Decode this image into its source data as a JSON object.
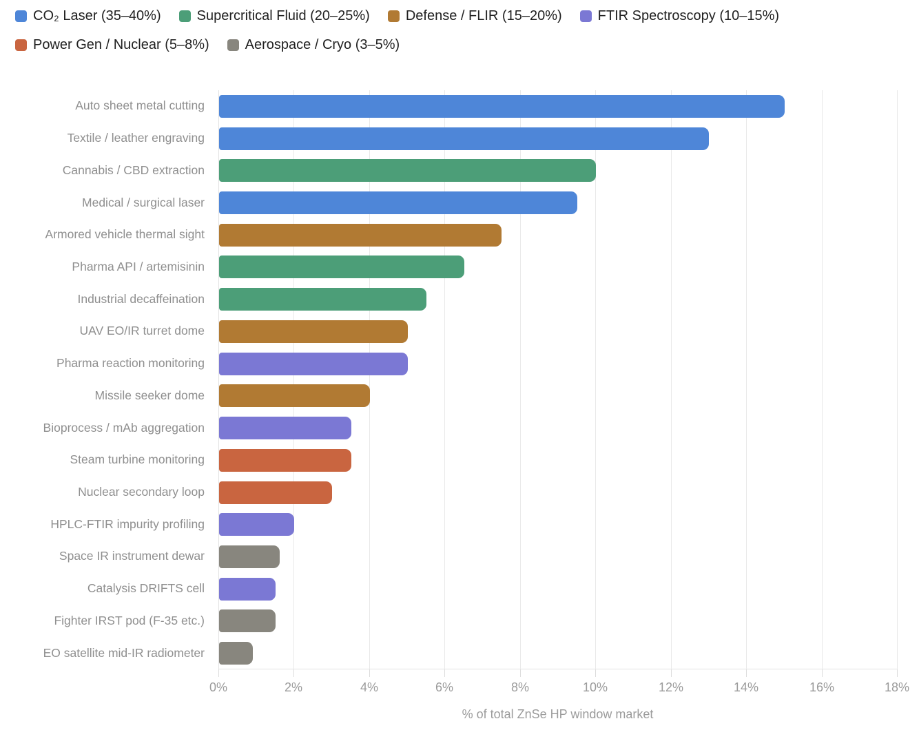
{
  "legend": {
    "items": [
      {
        "key": "co2_laser",
        "label": "CO₂ Laser (35–40%)",
        "color": "#4e86d8"
      },
      {
        "key": "supercritical_fluid",
        "label": "Supercritical Fluid (20–25%)",
        "color": "#4c9e78"
      },
      {
        "key": "defense_flir",
        "label": "Defense / FLIR (15–20%)",
        "color": "#b17a33"
      },
      {
        "key": "ftir_spectroscopy",
        "label": "FTIR Spectroscopy (10–15%)",
        "color": "#7b78d4"
      },
      {
        "key": "power_gen_nuclear",
        "label": "Power Gen / Nuclear (5–8%)",
        "color": "#c96540"
      },
      {
        "key": "aerospace_cryo",
        "label": "Aerospace / Cryo (3–5%)",
        "color": "#88867e"
      }
    ]
  },
  "chart_data": {
    "type": "bar",
    "orientation": "horizontal",
    "title": "",
    "xlabel": "% of total ZnSe HP window market",
    "ylabel": "",
    "xlim": [
      0,
      18
    ],
    "x_tick_values": [
      0,
      2,
      4,
      6,
      8,
      10,
      12,
      14,
      16,
      18
    ],
    "x_tick_labels": [
      "0%",
      "2%",
      "4%",
      "6%",
      "8%",
      "10%",
      "12%",
      "14%",
      "16%",
      "18%"
    ],
    "grid": true,
    "legend_position": "top-left",
    "bars": [
      {
        "label": "Auto sheet metal cutting",
        "value": 15.0,
        "group": "co2_laser"
      },
      {
        "label": "Textile / leather engraving",
        "value": 13.0,
        "group": "co2_laser"
      },
      {
        "label": "Cannabis / CBD extraction",
        "value": 10.0,
        "group": "supercritical_fluid"
      },
      {
        "label": "Medical / surgical laser",
        "value": 9.5,
        "group": "co2_laser"
      },
      {
        "label": "Armored vehicle thermal sight",
        "value": 7.5,
        "group": "defense_flir"
      },
      {
        "label": "Pharma API / artemisinin",
        "value": 6.5,
        "group": "supercritical_fluid"
      },
      {
        "label": "Industrial decaffeination",
        "value": 5.5,
        "group": "supercritical_fluid"
      },
      {
        "label": "UAV EO/IR turret dome",
        "value": 5.0,
        "group": "defense_flir"
      },
      {
        "label": "Pharma reaction monitoring",
        "value": 5.0,
        "group": "ftir_spectroscopy"
      },
      {
        "label": "Missile seeker dome",
        "value": 4.0,
        "group": "defense_flir"
      },
      {
        "label": "Bioprocess / mAb aggregation",
        "value": 3.5,
        "group": "ftir_spectroscopy"
      },
      {
        "label": "Steam turbine monitoring",
        "value": 3.5,
        "group": "power_gen_nuclear"
      },
      {
        "label": "Nuclear secondary loop",
        "value": 3.0,
        "group": "power_gen_nuclear"
      },
      {
        "label": "HPLC-FTIR impurity profiling",
        "value": 2.0,
        "group": "ftir_spectroscopy"
      },
      {
        "label": "Space IR instrument dewar",
        "value": 1.6,
        "group": "aerospace_cryo"
      },
      {
        "label": "Catalysis DRIFTS cell",
        "value": 1.5,
        "group": "ftir_spectroscopy"
      },
      {
        "label": "Fighter IRST pod (F-35 etc.)",
        "value": 1.5,
        "group": "aerospace_cryo"
      },
      {
        "label": "EO satellite mid-IR radiometer",
        "value": 0.9,
        "group": "aerospace_cryo"
      }
    ]
  }
}
